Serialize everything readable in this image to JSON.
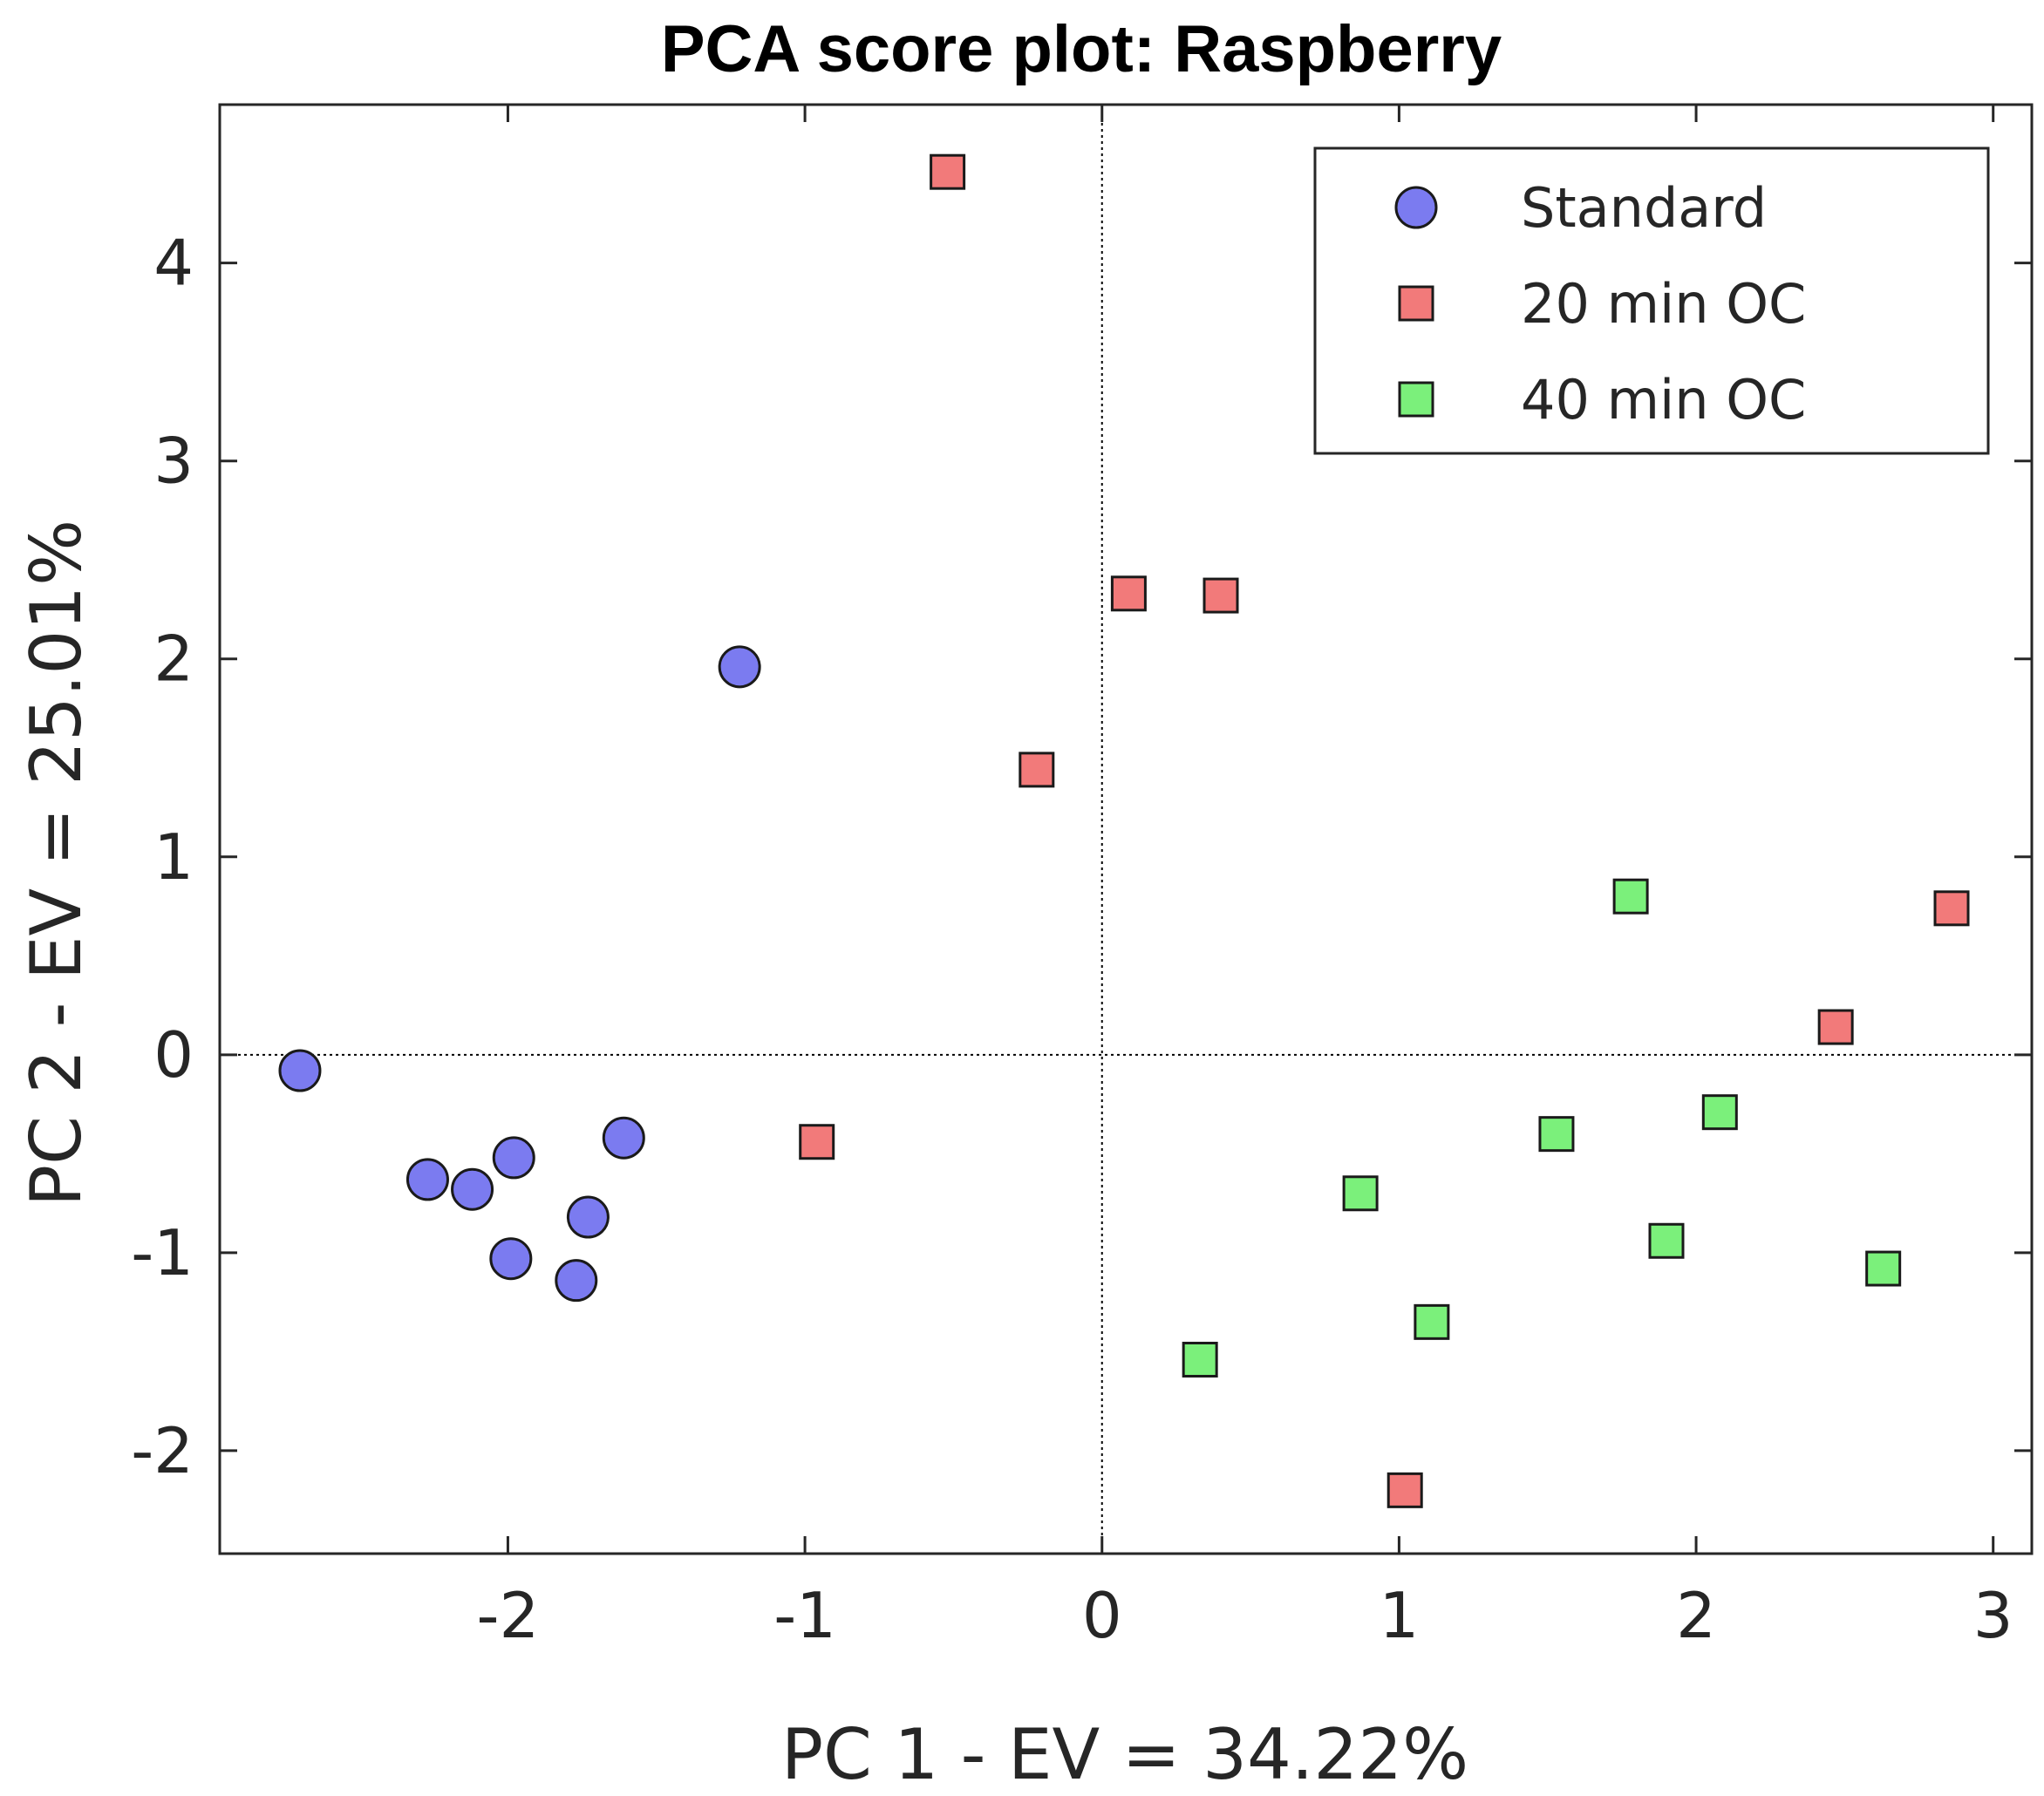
{
  "chart_data": {
    "type": "scatter",
    "title": "PCA score plot: Raspberry",
    "xlabel": "PC 1 - EV = 34.22%",
    "ylabel": "PC 2 - EV = 25.01%",
    "xlim": [
      -2.97,
      3.13
    ],
    "ylim": [
      -2.52,
      4.8
    ],
    "xticks": [
      -2,
      -1,
      0,
      1,
      2,
      3
    ],
    "yticks": [
      -2,
      -1,
      0,
      1,
      2,
      3,
      4
    ],
    "xtick_labels": [
      "-2",
      "-1",
      "0",
      "1",
      "2",
      "3"
    ],
    "ytick_labels": [
      "-2",
      "-1",
      "0",
      "1",
      "2",
      "3",
      "4"
    ],
    "reference_lines": {
      "x": 0,
      "y": 0,
      "style": "dotted"
    },
    "grid": false,
    "legend_position": "top-right",
    "series": [
      {
        "name": "Standard",
        "marker": "circle",
        "color": "#7b7bf0",
        "points": [
          [
            -2.7,
            -0.08
          ],
          [
            -2.27,
            -0.63
          ],
          [
            -2.12,
            -0.68
          ],
          [
            -1.98,
            -0.52
          ],
          [
            -1.99,
            -1.03
          ],
          [
            -1.77,
            -1.14
          ],
          [
            -1.73,
            -0.82
          ],
          [
            -1.61,
            -0.42
          ],
          [
            -1.22,
            1.96
          ]
        ]
      },
      {
        "name": "20 min OC",
        "marker": "square",
        "color": "#f27a7a",
        "points": [
          [
            -0.52,
            4.46
          ],
          [
            0.09,
            2.33
          ],
          [
            0.4,
            2.32
          ],
          [
            -0.22,
            1.44
          ],
          [
            -0.96,
            -0.44
          ],
          [
            1.02,
            -2.2
          ],
          [
            2.47,
            0.14
          ],
          [
            2.86,
            0.74
          ]
        ]
      },
      {
        "name": "40 min OC",
        "marker": "square",
        "color": "#7bf07b",
        "points": [
          [
            1.78,
            0.8
          ],
          [
            2.08,
            -0.29
          ],
          [
            1.53,
            -0.4
          ],
          [
            0.87,
            -0.7
          ],
          [
            1.9,
            -0.94
          ],
          [
            2.63,
            -1.08
          ],
          [
            1.11,
            -1.35
          ],
          [
            0.33,
            -1.54
          ]
        ]
      }
    ]
  }
}
